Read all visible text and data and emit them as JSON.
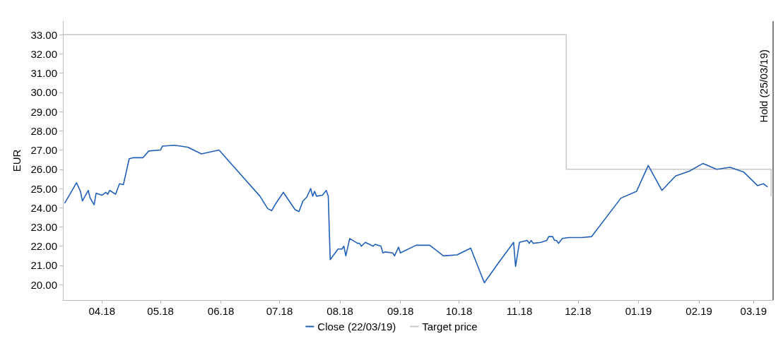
{
  "chart_data": {
    "type": "line",
    "ylabel": "EUR",
    "xlim": [
      "2018-03-26",
      "2019-03-25"
    ],
    "ylim": [
      19.2,
      33.7
    ],
    "xticks": [
      {
        "value": "2018-04-15",
        "label": "04.18"
      },
      {
        "value": "2018-05-15",
        "label": "05.18"
      },
      {
        "value": "2018-06-15",
        "label": "06.18"
      },
      {
        "value": "2018-07-15",
        "label": "07.18"
      },
      {
        "value": "2018-08-15",
        "label": "08.18"
      },
      {
        "value": "2018-09-15",
        "label": "09.18"
      },
      {
        "value": "2018-10-15",
        "label": "10.18"
      },
      {
        "value": "2018-11-15",
        "label": "11.18"
      },
      {
        "value": "2018-12-15",
        "label": "12.18"
      },
      {
        "value": "2019-01-15",
        "label": "01.19"
      },
      {
        "value": "2019-02-15",
        "label": "02.19"
      },
      {
        "value": "2019-03-15",
        "label": "03.19"
      }
    ],
    "yticks": [
      {
        "value": 20,
        "label": "20.00"
      },
      {
        "value": 21,
        "label": "21.00"
      },
      {
        "value": 22,
        "label": "22.00"
      },
      {
        "value": 23,
        "label": "23.00"
      },
      {
        "value": 24,
        "label": "24.00"
      },
      {
        "value": 25,
        "label": "25.00"
      },
      {
        "value": 26,
        "label": "26.00"
      },
      {
        "value": 27,
        "label": "27.00"
      },
      {
        "value": 28,
        "label": "28.00"
      },
      {
        "value": 29,
        "label": "29.00"
      },
      {
        "value": 30,
        "label": "30.00"
      },
      {
        "value": 31,
        "label": "31.00"
      },
      {
        "value": 32,
        "label": "32.00"
      },
      {
        "value": 33,
        "label": "33.00"
      }
    ],
    "grid": false,
    "legend": "bottom",
    "marker": "none",
    "line_style": "solid",
    "series": [
      {
        "name": "Close (22/03/19)",
        "color": "#1f5fb8",
        "x": [
          "2018-03-27",
          "2018-04-02",
          "2018-04-04",
          "2018-04-05",
          "2018-04-08",
          "2018-04-09",
          "2018-04-11",
          "2018-04-12",
          "2018-04-15",
          "2018-04-17",
          "2018-04-18",
          "2018-04-19",
          "2018-04-22",
          "2018-04-24",
          "2018-04-26",
          "2018-04-29",
          "2018-05-01",
          "2018-05-06",
          "2018-05-09",
          "2018-05-15",
          "2018-05-16",
          "2018-05-22",
          "2018-05-29",
          "2018-06-05",
          "2018-06-14",
          "2018-07-05",
          "2018-07-09",
          "2018-07-11",
          "2018-07-13",
          "2018-07-17",
          "2018-07-23",
          "2018-07-25",
          "2018-07-27",
          "2018-07-29",
          "2018-07-31",
          "2018-08-01",
          "2018-08-02",
          "2018-08-03",
          "2018-08-06",
          "2018-08-08",
          "2018-08-09",
          "2018-08-10",
          "2018-08-14",
          "2018-08-16",
          "2018-08-17",
          "2018-08-18",
          "2018-08-20",
          "2018-08-24",
          "2018-08-25",
          "2018-08-26",
          "2018-08-28",
          "2018-09-01",
          "2018-09-02",
          "2018-09-05",
          "2018-09-06",
          "2018-09-07",
          "2018-09-11",
          "2018-09-12",
          "2018-09-14",
          "2018-09-15",
          "2018-09-23",
          "2018-09-30",
          "2018-10-07",
          "2018-10-14",
          "2018-10-21",
          "2018-10-28",
          "2018-11-04",
          "2018-11-12",
          "2018-11-13",
          "2018-11-15",
          "2018-11-19",
          "2018-11-20",
          "2018-11-21",
          "2018-11-22",
          "2018-11-26",
          "2018-11-29",
          "2018-11-30",
          "2018-12-02",
          "2018-12-03",
          "2018-12-04",
          "2018-12-05",
          "2018-12-07",
          "2018-12-10",
          "2018-12-17",
          "2018-12-22",
          "2019-01-06",
          "2019-01-14",
          "2019-01-20",
          "2019-01-27",
          "2019-02-03",
          "2019-02-10",
          "2019-02-17",
          "2019-02-24",
          "2019-03-03",
          "2019-03-10",
          "2019-03-17",
          "2019-03-20",
          "2019-03-22"
        ],
        "values": [
          24.25,
          25.3,
          24.85,
          24.35,
          24.9,
          24.5,
          24.15,
          24.75,
          24.65,
          24.8,
          24.7,
          24.9,
          24.7,
          25.25,
          25.2,
          26.55,
          26.6,
          26.6,
          26.95,
          27.0,
          27.2,
          27.25,
          27.15,
          26.8,
          27.0,
          24.6,
          23.95,
          23.85,
          24.2,
          24.8,
          23.9,
          23.8,
          24.35,
          24.55,
          25.0,
          24.6,
          24.85,
          24.6,
          24.65,
          24.9,
          24.6,
          21.3,
          21.85,
          21.85,
          22.0,
          21.5,
          22.4,
          22.15,
          22.15,
          22.0,
          22.2,
          22.0,
          22.1,
          22.0,
          21.65,
          21.7,
          21.65,
          21.5,
          21.95,
          21.65,
          22.05,
          22.05,
          21.5,
          21.55,
          21.9,
          20.1,
          21.1,
          22.2,
          20.95,
          22.2,
          22.3,
          22.15,
          22.3,
          22.15,
          22.2,
          22.3,
          22.5,
          22.5,
          22.3,
          22.3,
          22.15,
          22.4,
          22.45,
          22.45,
          22.5,
          24.5,
          24.85,
          26.2,
          24.9,
          25.65,
          25.9,
          26.3,
          26.0,
          26.1,
          25.85,
          25.15,
          25.25,
          25.1
        ]
      },
      {
        "name": "Target price",
        "color": "#c8c8c8",
        "x": [
          "2018-03-26",
          "2018-12-09",
          "2018-12-09",
          "2019-03-24",
          "2019-03-24"
        ],
        "values": [
          33,
          33,
          26,
          26,
          24.6
        ]
      }
    ],
    "ref_lines": [
      {
        "axis": "x",
        "value": "2019-03-25",
        "label": "Hold (25/03/19)",
        "color": "#595959",
        "line_style": "solid"
      }
    ]
  }
}
